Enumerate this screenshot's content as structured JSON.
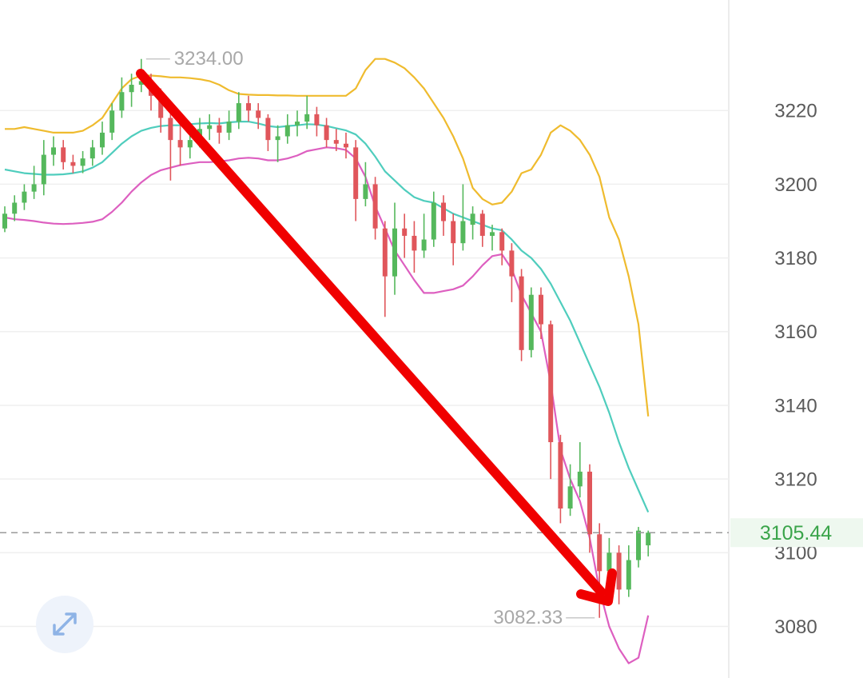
{
  "chart_data": {
    "type": "candlestick",
    "candles": {
      "open": [
        3188,
        3192,
        3195,
        3198,
        3200,
        3208,
        3210,
        3206,
        3205,
        3207,
        3210,
        3214,
        3220,
        3225,
        3227,
        3228,
        3224,
        3218,
        3212,
        3210,
        3212,
        3215,
        3216,
        3214,
        3217,
        3222,
        3220,
        3218,
        3212,
        3213,
        3216,
        3217,
        3219,
        3216,
        3212,
        3211,
        3210,
        3196,
        3200,
        3188,
        3175,
        3188,
        3186,
        3182,
        3185,
        3195,
        3190,
        3184,
        3189,
        3192,
        3186,
        3187,
        3182,
        3175,
        3155,
        3170,
        3162,
        3130,
        3112,
        3118,
        3122,
        3105,
        3095,
        3100,
        3090,
        3098,
        3102
      ],
      "high": [
        3194,
        3197,
        3200,
        3205,
        3212,
        3213,
        3212,
        3208,
        3209,
        3212,
        3217,
        3222,
        3229,
        3230,
        3234,
        3230,
        3226,
        3220,
        3216,
        3215,
        3218,
        3219,
        3218,
        3220,
        3225,
        3224,
        3222,
        3219,
        3216,
        3219,
        3220,
        3224,
        3221,
        3218,
        3215,
        3214,
        3212,
        3206,
        3202,
        3190,
        3195,
        3192,
        3190,
        3192,
        3198,
        3197,
        3192,
        3200,
        3194,
        3193,
        3189,
        3188,
        3184,
        3177,
        3172,
        3172,
        3163,
        3132,
        3124,
        3130,
        3124,
        3108,
        3104,
        3102,
        3102,
        3107,
        3106
      ],
      "low": [
        3187,
        3190,
        3193,
        3196,
        3197,
        3205,
        3204,
        3203,
        3203,
        3205,
        3208,
        3212,
        3218,
        3221,
        3225,
        3220,
        3214,
        3201,
        3205,
        3207,
        3210,
        3212,
        3211,
        3212,
        3215,
        3217,
        3215,
        3209,
        3206,
        3211,
        3213,
        3215,
        3213,
        3210,
        3209,
        3207,
        3190,
        3194,
        3185,
        3164,
        3170,
        3180,
        3176,
        3180,
        3183,
        3186,
        3178,
        3182,
        3185,
        3183,
        3182,
        3178,
        3168,
        3152,
        3153,
        3158,
        3120,
        3108,
        3110,
        3115,
        3100,
        3082.33,
        3088,
        3086,
        3088,
        3096,
        3099
      ],
      "close": [
        3192,
        3195,
        3198,
        3200,
        3208,
        3210,
        3206,
        3205,
        3207,
        3210,
        3214,
        3220,
        3225,
        3227,
        3228,
        3224,
        3218,
        3212,
        3210,
        3212,
        3215,
        3216,
        3214,
        3217,
        3222,
        3220,
        3218,
        3212,
        3213,
        3216,
        3217,
        3219,
        3216,
        3212,
        3211,
        3210,
        3196,
        3200,
        3188,
        3175,
        3188,
        3186,
        3182,
        3185,
        3195,
        3190,
        3184,
        3190,
        3192,
        3186,
        3187,
        3182,
        3175,
        3155,
        3170,
        3162,
        3130,
        3112,
        3118,
        3122,
        3105,
        3095,
        3100,
        3090,
        3098,
        3106,
        3105.44
      ],
      "up_color": "#55b85c",
      "down_color": "#e0565b"
    },
    "bands": [
      {
        "color": "#efbb2e",
        "values": [
          3215,
          3215,
          3215.5,
          3215,
          3214.5,
          3214,
          3214,
          3214,
          3214.5,
          3216,
          3218,
          3222,
          3226,
          3228.5,
          3229.5,
          3229.5,
          3229.3,
          3229,
          3229,
          3228.8,
          3228.5,
          3228,
          3227,
          3225.5,
          3224.5,
          3224.3,
          3224.2,
          3224.2,
          3224.1,
          3224.1,
          3224,
          3224,
          3224,
          3224,
          3224,
          3224,
          3226,
          3231,
          3234,
          3234,
          3233,
          3231.5,
          3229,
          3226,
          3222,
          3218,
          3213,
          3207,
          3199,
          3196,
          3194.5,
          3195,
          3198,
          3203,
          3204,
          3208,
          3214,
          3216,
          3214.5,
          3212,
          3208,
          3202,
          3191,
          3185,
          3175,
          3162,
          3137
        ]
      },
      {
        "color": "#4fcdbd",
        "values": [
          3204,
          3203.5,
          3203,
          3202.8,
          3202.6,
          3202.6,
          3202.7,
          3203,
          3203.5,
          3204.5,
          3206,
          3208.5,
          3211,
          3213,
          3214.5,
          3215.3,
          3215.8,
          3216,
          3216,
          3216.3,
          3216.5,
          3216.6,
          3216.5,
          3216.8,
          3217,
          3217,
          3216.5,
          3215.8,
          3215.5,
          3215.8,
          3216,
          3216.3,
          3216.2,
          3215.8,
          3215.2,
          3214.6,
          3213.5,
          3211,
          3207.5,
          3203.5,
          3201,
          3198.5,
          3196.5,
          3195.5,
          3195,
          3193.5,
          3192,
          3191,
          3190,
          3189,
          3188,
          3187.5,
          3185,
          3182,
          3180,
          3177,
          3173,
          3168,
          3163,
          3157,
          3151,
          3145,
          3138,
          3130,
          3123,
          3117,
          3111
        ]
      },
      {
        "color": "#dd5fc0",
        "values": [
          3191,
          3190.5,
          3190.3,
          3190,
          3189.6,
          3189.3,
          3189.2,
          3189.3,
          3189.5,
          3189.8,
          3190.5,
          3192.5,
          3195,
          3198,
          3200.5,
          3202.5,
          3203.8,
          3204.5,
          3205.2,
          3205.6,
          3206,
          3206,
          3206.2,
          3206.5,
          3207,
          3207.2,
          3207,
          3206.5,
          3206.5,
          3207,
          3207.8,
          3209,
          3209.5,
          3210,
          3209.8,
          3209.3,
          3207,
          3202,
          3194,
          3188,
          3182,
          3178,
          3174,
          3170.5,
          3170.5,
          3171,
          3171.5,
          3172.5,
          3175,
          3178,
          3180.5,
          3181,
          3177,
          3170,
          3165,
          3160,
          3146,
          3128,
          3120,
          3114,
          3104,
          3090,
          3080,
          3074,
          3070,
          3071.5,
          3083
        ]
      }
    ],
    "ylim": [
      3066,
      3250
    ],
    "yticks": [
      3080,
      3100,
      3120,
      3140,
      3160,
      3180,
      3200,
      3220
    ],
    "grid": true,
    "high_label": {
      "value": 3234,
      "label": "3234.00"
    },
    "low_label": {
      "value": 3082.33,
      "label": "3082.33"
    },
    "last_price": 3105.44,
    "last_price_color": "#3aa44a"
  }
}
